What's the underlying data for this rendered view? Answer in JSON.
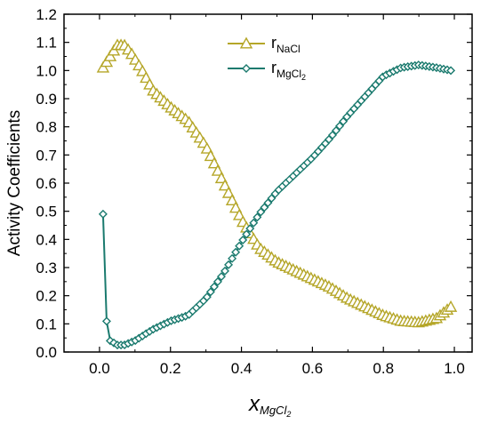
{
  "chart_data": {
    "type": "line",
    "title": "",
    "xlabel": {
      "main": "x",
      "sub": "MgCl",
      "sub2": "2"
    },
    "ylabel": "Activity Coefficients",
    "xlim": [
      -0.1,
      1.05
    ],
    "ylim": [
      0.0,
      1.2
    ],
    "x_ticks": [
      "0.0",
      "0.2",
      "0.4",
      "0.6",
      "0.8",
      "1.0"
    ],
    "y_ticks": [
      "0.0",
      "0.1",
      "0.2",
      "0.3",
      "0.4",
      "0.5",
      "0.6",
      "0.7",
      "0.8",
      "0.9",
      "1.0",
      "1.1",
      "1.2"
    ],
    "legend_position": "top-center",
    "series": [
      {
        "name": "r",
        "sub": "NaCl",
        "color": "#b5a628",
        "marker": "open-triangle",
        "anchors": [
          [
            0.01,
            1.01
          ],
          [
            0.03,
            1.05
          ],
          [
            0.05,
            1.09
          ],
          [
            0.07,
            1.09
          ],
          [
            0.09,
            1.06
          ],
          [
            0.12,
            1.0
          ],
          [
            0.15,
            0.93
          ],
          [
            0.2,
            0.87
          ],
          [
            0.25,
            0.82
          ],
          [
            0.3,
            0.73
          ],
          [
            0.35,
            0.6
          ],
          [
            0.4,
            0.47
          ],
          [
            0.45,
            0.37
          ],
          [
            0.5,
            0.32
          ],
          [
            0.55,
            0.29
          ],
          [
            0.6,
            0.26
          ],
          [
            0.65,
            0.23
          ],
          [
            0.7,
            0.19
          ],
          [
            0.75,
            0.16
          ],
          [
            0.8,
            0.13
          ],
          [
            0.85,
            0.11
          ],
          [
            0.9,
            0.105
          ],
          [
            0.95,
            0.12
          ],
          [
            0.99,
            0.16
          ]
        ]
      },
      {
        "name": "r",
        "sub": "MgCl",
        "sub2": "2",
        "color": "#1a7a6e",
        "marker": "open-diamond",
        "anchors": [
          [
            0.01,
            0.49
          ],
          [
            0.02,
            0.11
          ],
          [
            0.03,
            0.04
          ],
          [
            0.05,
            0.025
          ],
          [
            0.07,
            0.025
          ],
          [
            0.1,
            0.04
          ],
          [
            0.15,
            0.08
          ],
          [
            0.2,
            0.11
          ],
          [
            0.25,
            0.13
          ],
          [
            0.3,
            0.19
          ],
          [
            0.35,
            0.28
          ],
          [
            0.4,
            0.39
          ],
          [
            0.45,
            0.49
          ],
          [
            0.5,
            0.57
          ],
          [
            0.55,
            0.63
          ],
          [
            0.6,
            0.69
          ],
          [
            0.65,
            0.76
          ],
          [
            0.7,
            0.84
          ],
          [
            0.75,
            0.91
          ],
          [
            0.8,
            0.98
          ],
          [
            0.85,
            1.01
          ],
          [
            0.9,
            1.02
          ],
          [
            0.95,
            1.01
          ],
          [
            0.99,
            1.0
          ]
        ]
      }
    ]
  }
}
